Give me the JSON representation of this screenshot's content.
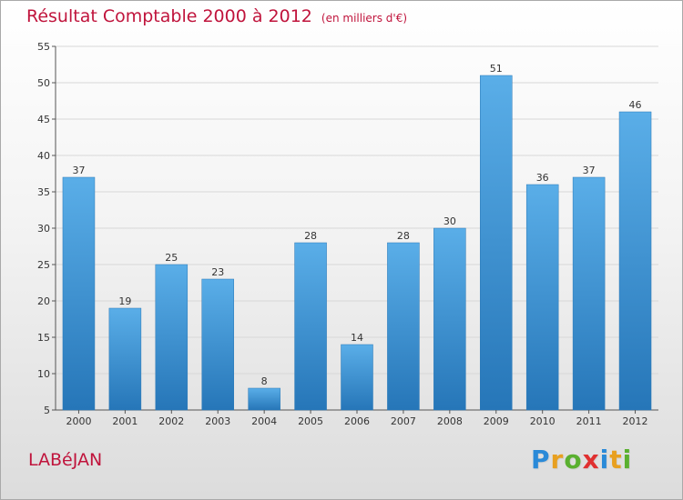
{
  "chart_data": {
    "type": "bar",
    "title": "Résultat Comptable 2000 à 2012",
    "subtitle": "(en milliers d'€)",
    "categories": [
      "2000",
      "2001",
      "2002",
      "2003",
      "2004",
      "2005",
      "2006",
      "2007",
      "2008",
      "2009",
      "2010",
      "2011",
      "2012"
    ],
    "values": [
      37,
      19,
      25,
      23,
      8,
      28,
      14,
      28,
      30,
      51,
      36,
      37,
      46
    ],
    "ylim": [
      5,
      55
    ],
    "yticks": [
      5,
      10,
      15,
      20,
      25,
      30,
      35,
      40,
      45,
      50,
      55
    ],
    "grid": true,
    "bar_color_top": "#5aaee8",
    "bar_color_bottom": "#2676b8"
  },
  "place_name": "LABéJAN",
  "logo": {
    "letters": [
      "P",
      "r",
      "o",
      "x",
      "i",
      "t",
      "i"
    ],
    "colors": [
      "#2a8ad8",
      "#e8a020",
      "#5ab030",
      "#e03030",
      "#2a8ad8",
      "#e8a020",
      "#5ab030"
    ]
  }
}
